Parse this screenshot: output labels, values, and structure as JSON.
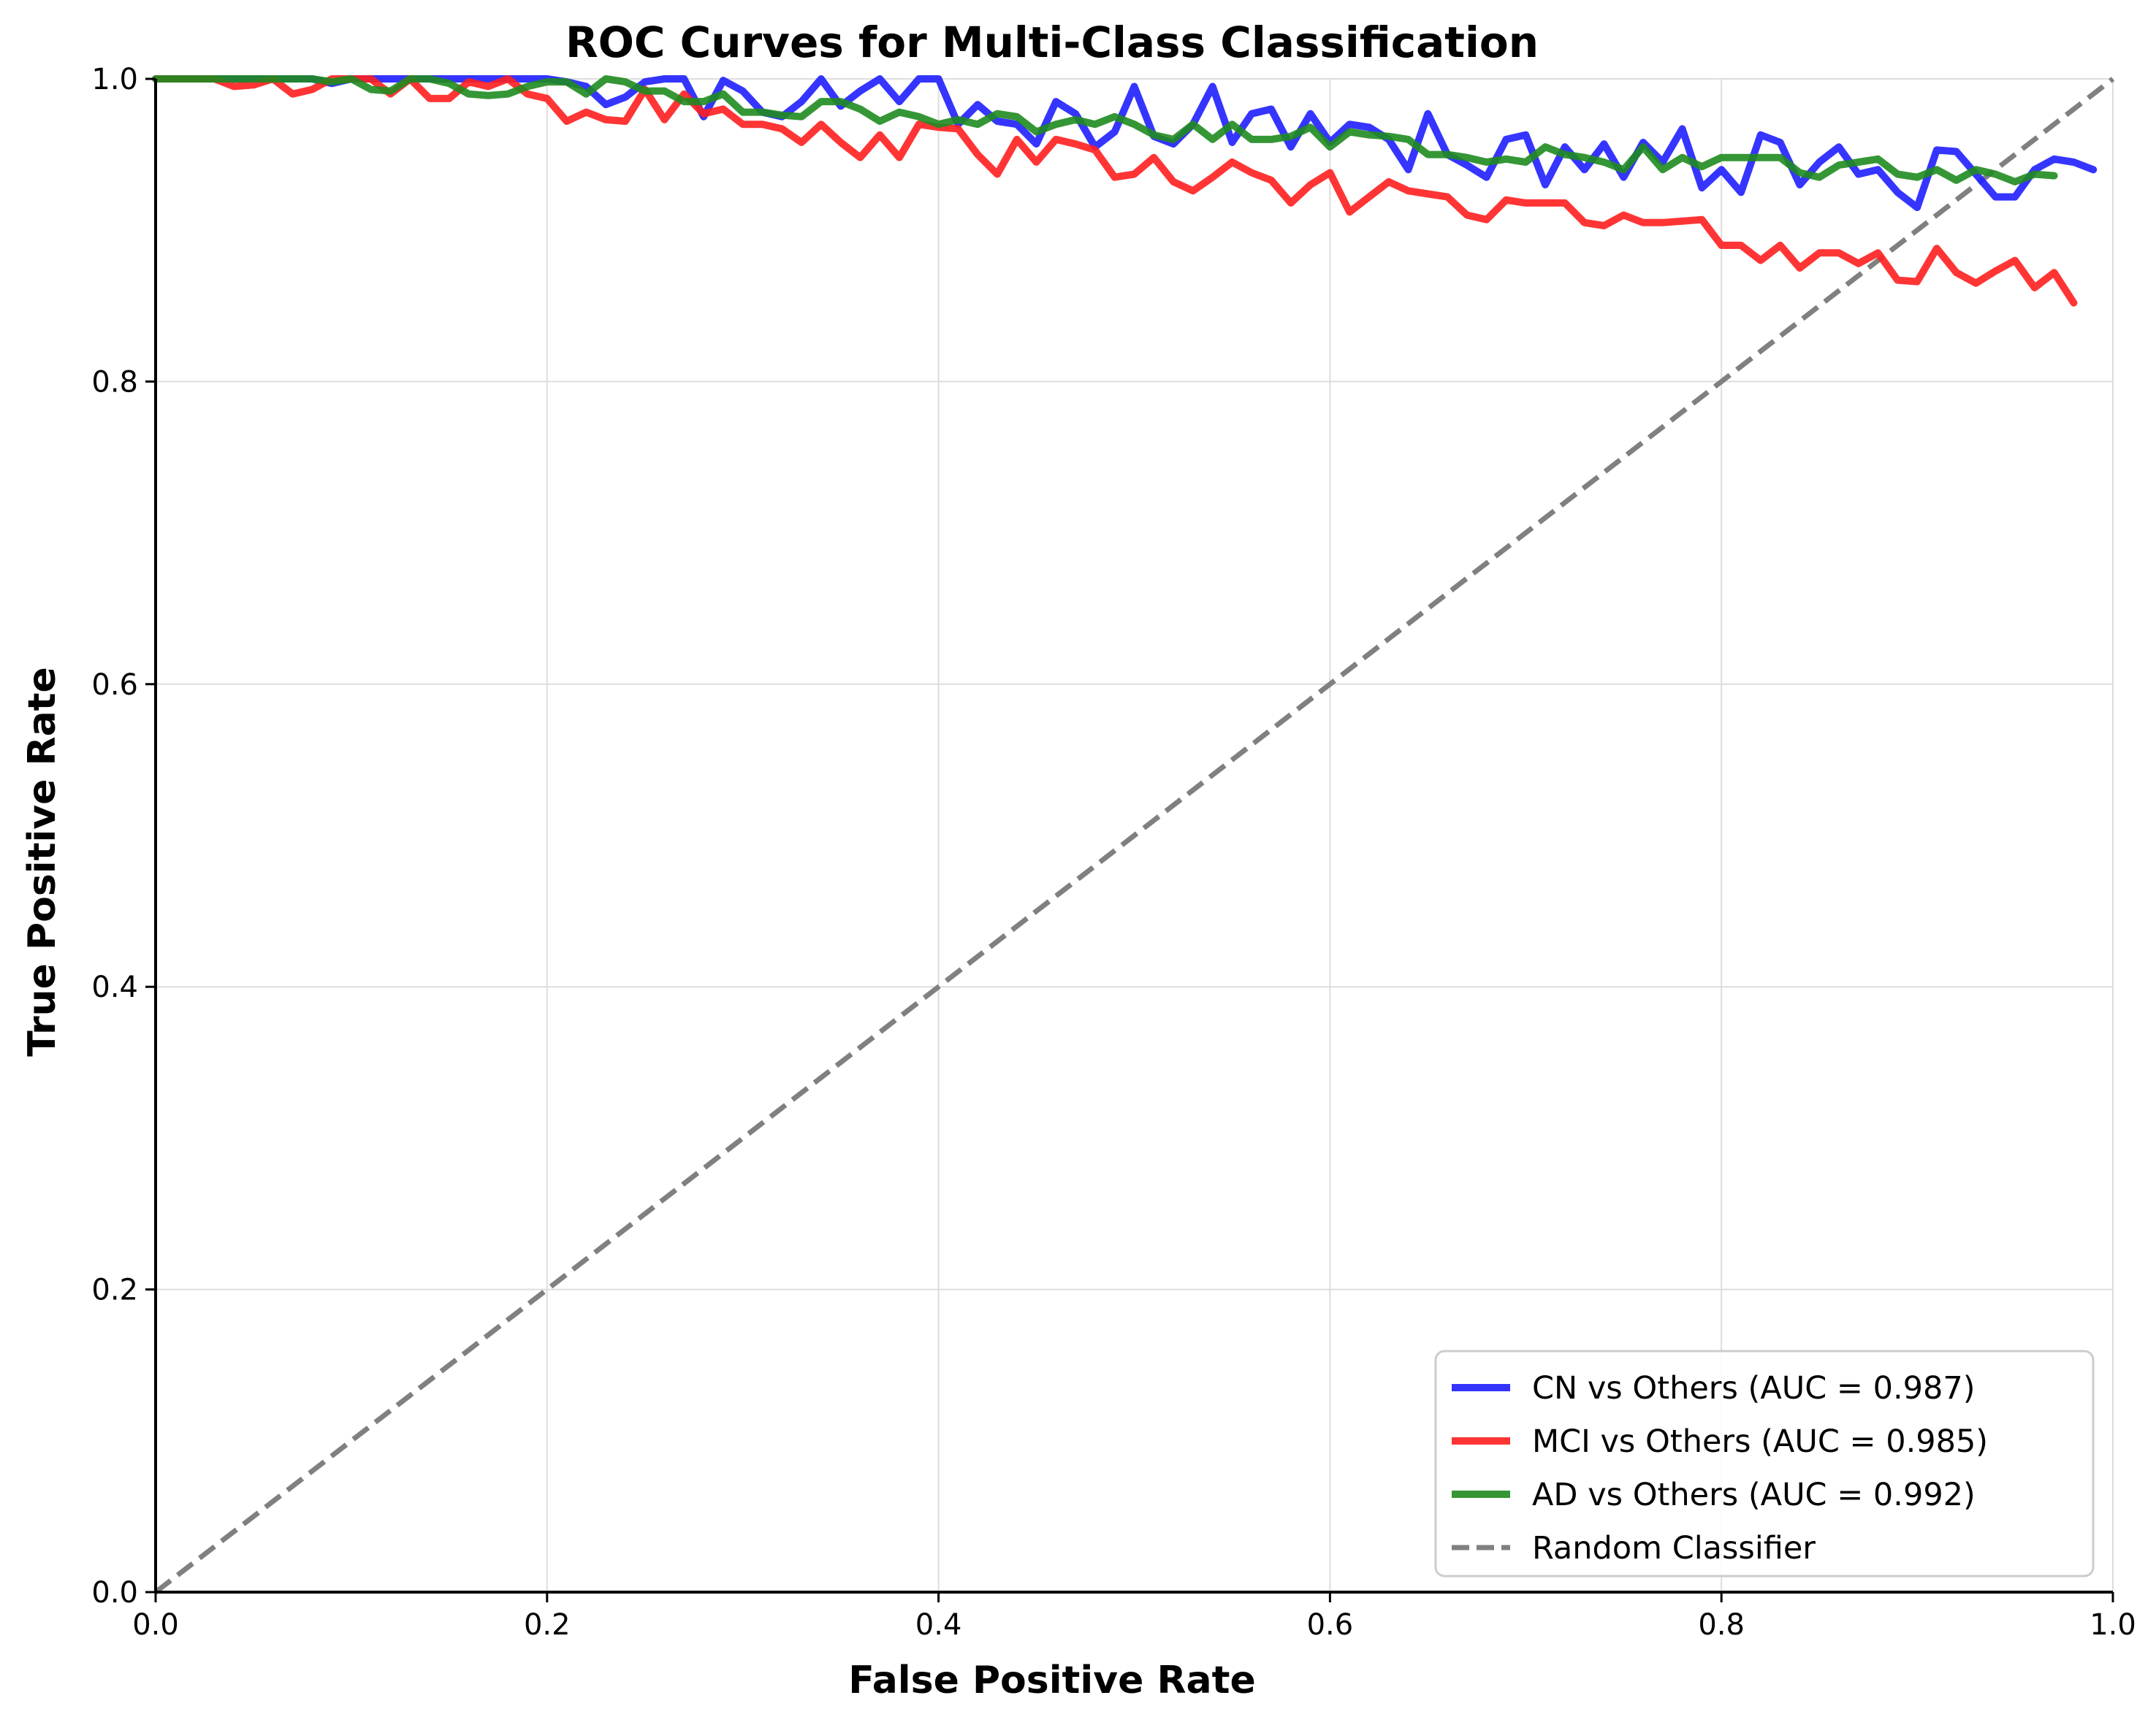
{
  "chart_data": {
    "type": "line",
    "title": "ROC Curves for Multi-Class Classification",
    "xlabel": "False Positive Rate",
    "ylabel": "True Positive Rate",
    "xlim": [
      0,
      1
    ],
    "ylim": [
      0,
      1
    ],
    "xticks": [
      "0.0",
      "0.2",
      "0.4",
      "0.6",
      "0.8",
      "1.0"
    ],
    "yticks": [
      "0.0",
      "0.2",
      "0.4",
      "0.6",
      "0.8",
      "1.0"
    ],
    "grid": true,
    "legend_position": "bottom-right",
    "series": [
      {
        "name": "CN vs Others (AUC = 0.987)",
        "color": "#1f1fff",
        "dash": "solid",
        "points": [
          [
            0,
            1.0
          ],
          [
            0.04,
            1.0
          ],
          [
            0.08,
            1.0
          ],
          [
            0.09,
            0.997
          ],
          [
            0.1,
            1.0
          ],
          [
            0.15,
            1.0
          ],
          [
            0.2,
            1.0
          ],
          [
            0.21,
            0.998
          ],
          [
            0.22,
            0.995
          ],
          [
            0.23,
            0.983
          ],
          [
            0.24,
            0.988
          ],
          [
            0.25,
            0.998
          ],
          [
            0.26,
            1.0
          ],
          [
            0.27,
            1.0
          ],
          [
            0.28,
            0.975
          ],
          [
            0.29,
            0.999
          ],
          [
            0.3,
            0.992
          ],
          [
            0.31,
            0.978
          ],
          [
            0.32,
            0.975
          ],
          [
            0.33,
            0.985
          ],
          [
            0.34,
            1.0
          ],
          [
            0.35,
            0.982
          ],
          [
            0.36,
            0.992
          ],
          [
            0.37,
            1.0
          ],
          [
            0.38,
            0.985
          ],
          [
            0.39,
            1.0
          ],
          [
            0.4,
            1.0
          ],
          [
            0.41,
            0.97
          ],
          [
            0.42,
            0.983
          ],
          [
            0.43,
            0.972
          ],
          [
            0.44,
            0.97
          ],
          [
            0.45,
            0.957
          ],
          [
            0.46,
            0.985
          ],
          [
            0.47,
            0.977
          ],
          [
            0.48,
            0.955
          ],
          [
            0.49,
            0.965
          ],
          [
            0.5,
            0.995
          ],
          [
            0.51,
            0.962
          ],
          [
            0.52,
            0.957
          ],
          [
            0.53,
            0.97
          ],
          [
            0.54,
            0.995
          ],
          [
            0.55,
            0.958
          ],
          [
            0.56,
            0.977
          ],
          [
            0.57,
            0.98
          ],
          [
            0.58,
            0.955
          ],
          [
            0.59,
            0.977
          ],
          [
            0.6,
            0.958
          ],
          [
            0.61,
            0.97
          ],
          [
            0.62,
            0.968
          ],
          [
            0.63,
            0.96
          ],
          [
            0.64,
            0.94
          ],
          [
            0.65,
            0.977
          ],
          [
            0.66,
            0.95
          ],
          [
            0.67,
            0.943
          ],
          [
            0.68,
            0.935
          ],
          [
            0.69,
            0.96
          ],
          [
            0.7,
            0.963
          ],
          [
            0.71,
            0.93
          ],
          [
            0.72,
            0.955
          ],
          [
            0.73,
            0.94
          ],
          [
            0.74,
            0.957
          ],
          [
            0.75,
            0.935
          ],
          [
            0.76,
            0.958
          ],
          [
            0.77,
            0.945
          ],
          [
            0.78,
            0.967
          ],
          [
            0.79,
            0.928
          ],
          [
            0.8,
            0.94
          ],
          [
            0.81,
            0.925
          ],
          [
            0.82,
            0.963
          ],
          [
            0.83,
            0.958
          ],
          [
            0.84,
            0.93
          ],
          [
            0.85,
            0.945
          ],
          [
            0.86,
            0.955
          ],
          [
            0.87,
            0.937
          ],
          [
            0.88,
            0.94
          ],
          [
            0.89,
            0.925
          ],
          [
            0.9,
            0.915
          ],
          [
            0.91,
            0.953
          ],
          [
            0.92,
            0.952
          ],
          [
            0.93,
            0.937
          ],
          [
            0.94,
            0.922
          ],
          [
            0.95,
            0.922
          ],
          [
            0.96,
            0.94
          ],
          [
            0.97,
            0.947
          ],
          [
            0.98,
            0.945
          ],
          [
            0.99,
            0.94
          ]
        ]
      },
      {
        "name": "MCI vs Others (AUC = 0.985)",
        "color": "#ff1f1f",
        "dash": "solid",
        "points": [
          [
            0,
            1.0
          ],
          [
            0.03,
            1.0
          ],
          [
            0.04,
            0.995
          ],
          [
            0.05,
            0.996
          ],
          [
            0.06,
            1.0
          ],
          [
            0.07,
            0.99
          ],
          [
            0.08,
            0.993
          ],
          [
            0.09,
            1.0
          ],
          [
            0.1,
            1.0
          ],
          [
            0.11,
            1.0
          ],
          [
            0.12,
            0.99
          ],
          [
            0.13,
            1.0
          ],
          [
            0.14,
            0.987
          ],
          [
            0.15,
            0.987
          ],
          [
            0.16,
            0.998
          ],
          [
            0.17,
            0.995
          ],
          [
            0.18,
            1.0
          ],
          [
            0.19,
            0.99
          ],
          [
            0.2,
            0.987
          ],
          [
            0.21,
            0.972
          ],
          [
            0.22,
            0.978
          ],
          [
            0.23,
            0.973
          ],
          [
            0.24,
            0.972
          ],
          [
            0.25,
            0.993
          ],
          [
            0.26,
            0.973
          ],
          [
            0.27,
            0.99
          ],
          [
            0.28,
            0.977
          ],
          [
            0.29,
            0.98
          ],
          [
            0.3,
            0.97
          ],
          [
            0.31,
            0.97
          ],
          [
            0.32,
            0.967
          ],
          [
            0.33,
            0.958
          ],
          [
            0.34,
            0.97
          ],
          [
            0.35,
            0.958
          ],
          [
            0.36,
            0.948
          ],
          [
            0.37,
            0.963
          ],
          [
            0.38,
            0.948
          ],
          [
            0.39,
            0.97
          ],
          [
            0.4,
            0.968
          ],
          [
            0.41,
            0.967
          ],
          [
            0.42,
            0.95
          ],
          [
            0.43,
            0.937
          ],
          [
            0.44,
            0.96
          ],
          [
            0.45,
            0.945
          ],
          [
            0.46,
            0.96
          ],
          [
            0.47,
            0.957
          ],
          [
            0.48,
            0.953
          ],
          [
            0.49,
            0.935
          ],
          [
            0.5,
            0.937
          ],
          [
            0.51,
            0.948
          ],
          [
            0.52,
            0.932
          ],
          [
            0.53,
            0.926
          ],
          [
            0.54,
            0.935
          ],
          [
            0.55,
            0.945
          ],
          [
            0.56,
            0.938
          ],
          [
            0.57,
            0.933
          ],
          [
            0.58,
            0.918
          ],
          [
            0.59,
            0.93
          ],
          [
            0.6,
            0.938
          ],
          [
            0.61,
            0.912
          ],
          [
            0.62,
            0.922
          ],
          [
            0.63,
            0.932
          ],
          [
            0.64,
            0.926
          ],
          [
            0.65,
            0.924
          ],
          [
            0.66,
            0.922
          ],
          [
            0.67,
            0.91
          ],
          [
            0.68,
            0.907
          ],
          [
            0.69,
            0.92
          ],
          [
            0.7,
            0.918
          ],
          [
            0.71,
            0.918
          ],
          [
            0.72,
            0.918
          ],
          [
            0.73,
            0.905
          ],
          [
            0.74,
            0.903
          ],
          [
            0.75,
            0.91
          ],
          [
            0.76,
            0.905
          ],
          [
            0.77,
            0.905
          ],
          [
            0.78,
            0.906
          ],
          [
            0.79,
            0.907
          ],
          [
            0.8,
            0.89
          ],
          [
            0.81,
            0.89
          ],
          [
            0.82,
            0.88
          ],
          [
            0.83,
            0.89
          ],
          [
            0.84,
            0.875
          ],
          [
            0.85,
            0.885
          ],
          [
            0.86,
            0.885
          ],
          [
            0.87,
            0.878
          ],
          [
            0.88,
            0.885
          ],
          [
            0.89,
            0.867
          ],
          [
            0.9,
            0.866
          ],
          [
            0.91,
            0.888
          ],
          [
            0.92,
            0.872
          ],
          [
            0.93,
            0.865
          ],
          [
            0.94,
            0.873
          ],
          [
            0.95,
            0.88
          ],
          [
            0.96,
            0.862
          ],
          [
            0.97,
            0.872
          ],
          [
            0.98,
            0.852
          ]
        ]
      },
      {
        "name": "AD vs Others (AUC = 0.992)",
        "color": "#1f8b1f",
        "dash": "solid",
        "points": [
          [
            0,
            1.0
          ],
          [
            0.08,
            1.0
          ],
          [
            0.09,
            0.998
          ],
          [
            0.1,
            1.0
          ],
          [
            0.11,
            0.993
          ],
          [
            0.12,
            0.992
          ],
          [
            0.13,
            1.0
          ],
          [
            0.14,
            1.0
          ],
          [
            0.15,
            0.997
          ],
          [
            0.16,
            0.99
          ],
          [
            0.17,
            0.989
          ],
          [
            0.18,
            0.99
          ],
          [
            0.19,
            0.995
          ],
          [
            0.2,
            0.998
          ],
          [
            0.21,
            0.998
          ],
          [
            0.22,
            0.99
          ],
          [
            0.23,
            1.0
          ],
          [
            0.24,
            0.998
          ],
          [
            0.25,
            0.992
          ],
          [
            0.26,
            0.992
          ],
          [
            0.27,
            0.985
          ],
          [
            0.28,
            0.985
          ],
          [
            0.29,
            0.99
          ],
          [
            0.3,
            0.978
          ],
          [
            0.31,
            0.978
          ],
          [
            0.32,
            0.976
          ],
          [
            0.33,
            0.975
          ],
          [
            0.34,
            0.985
          ],
          [
            0.35,
            0.985
          ],
          [
            0.36,
            0.98
          ],
          [
            0.37,
            0.972
          ],
          [
            0.38,
            0.978
          ],
          [
            0.39,
            0.975
          ],
          [
            0.4,
            0.97
          ],
          [
            0.41,
            0.973
          ],
          [
            0.42,
            0.97
          ],
          [
            0.43,
            0.977
          ],
          [
            0.44,
            0.975
          ],
          [
            0.45,
            0.965
          ],
          [
            0.46,
            0.97
          ],
          [
            0.47,
            0.973
          ],
          [
            0.48,
            0.97
          ],
          [
            0.49,
            0.975
          ],
          [
            0.5,
            0.97
          ],
          [
            0.51,
            0.963
          ],
          [
            0.52,
            0.96
          ],
          [
            0.53,
            0.97
          ],
          [
            0.54,
            0.96
          ],
          [
            0.55,
            0.97
          ],
          [
            0.56,
            0.96
          ],
          [
            0.57,
            0.96
          ],
          [
            0.58,
            0.962
          ],
          [
            0.59,
            0.968
          ],
          [
            0.6,
            0.955
          ],
          [
            0.61,
            0.965
          ],
          [
            0.62,
            0.963
          ],
          [
            0.63,
            0.962
          ],
          [
            0.64,
            0.96
          ],
          [
            0.65,
            0.95
          ],
          [
            0.66,
            0.95
          ],
          [
            0.67,
            0.948
          ],
          [
            0.68,
            0.945
          ],
          [
            0.69,
            0.947
          ],
          [
            0.7,
            0.945
          ],
          [
            0.71,
            0.955
          ],
          [
            0.72,
            0.95
          ],
          [
            0.73,
            0.948
          ],
          [
            0.74,
            0.945
          ],
          [
            0.75,
            0.94
          ],
          [
            0.76,
            0.955
          ],
          [
            0.77,
            0.94
          ],
          [
            0.78,
            0.948
          ],
          [
            0.79,
            0.942
          ],
          [
            0.8,
            0.948
          ],
          [
            0.81,
            0.948
          ],
          [
            0.82,
            0.948
          ],
          [
            0.83,
            0.948
          ],
          [
            0.84,
            0.938
          ],
          [
            0.85,
            0.935
          ],
          [
            0.86,
            0.943
          ],
          [
            0.87,
            0.945
          ],
          [
            0.88,
            0.947
          ],
          [
            0.89,
            0.937
          ],
          [
            0.9,
            0.935
          ],
          [
            0.91,
            0.94
          ],
          [
            0.92,
            0.933
          ],
          [
            0.93,
            0.94
          ],
          [
            0.94,
            0.937
          ],
          [
            0.95,
            0.932
          ],
          [
            0.96,
            0.937
          ],
          [
            0.97,
            0.936
          ]
        ]
      },
      {
        "name": "Random Classifier",
        "color": "#808080",
        "dash": "dashed",
        "points": [
          [
            0,
            0
          ],
          [
            1,
            1
          ]
        ]
      }
    ]
  }
}
